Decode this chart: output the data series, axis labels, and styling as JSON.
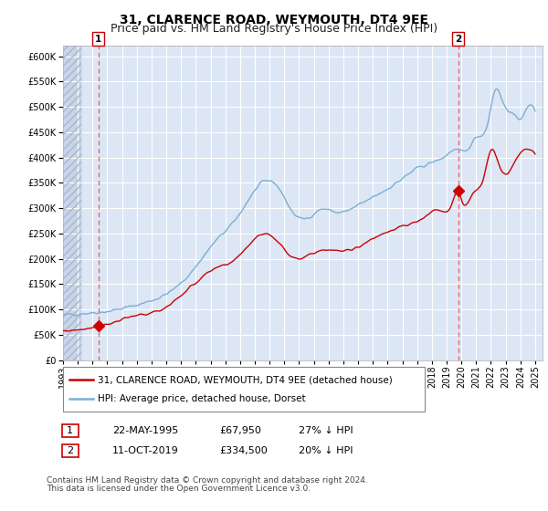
{
  "title": "31, CLARENCE ROAD, WEYMOUTH, DT4 9EE",
  "subtitle": "Price paid vs. HM Land Registry's House Price Index (HPI)",
  "ylim": [
    0,
    620000
  ],
  "yticks": [
    0,
    50000,
    100000,
    150000,
    200000,
    250000,
    300000,
    350000,
    400000,
    450000,
    500000,
    550000,
    600000
  ],
  "xlim_start": 1993.0,
  "xlim_end": 2025.5,
  "background_color": "#dce6f5",
  "hatch_color": "#c8d4e8",
  "grid_color": "#ffffff",
  "red_line_color": "#cc0000",
  "blue_line_color": "#7aafd4",
  "dashed_line_color": "#ff5555",
  "marker_color": "#cc0000",
  "sale1_date": 1995.386,
  "sale1_value": 67950,
  "sale2_date": 2019.78,
  "sale2_value": 334500,
  "legend_line1": "31, CLARENCE ROAD, WEYMOUTH, DT4 9EE (detached house)",
  "legend_line2": "HPI: Average price, detached house, Dorset",
  "table_row1": [
    "1",
    "22-MAY-1995",
    "£67,950",
    "27% ↓ HPI"
  ],
  "table_row2": [
    "2",
    "11-OCT-2019",
    "£334,500",
    "20% ↓ HPI"
  ],
  "footnote1": "Contains HM Land Registry data © Crown copyright and database right 2024.",
  "footnote2": "This data is licensed under the Open Government Licence v3.0.",
  "title_fontsize": 10,
  "subtitle_fontsize": 9,
  "tick_fontsize": 7,
  "legend_fontsize": 7.5,
  "table_fontsize": 8,
  "footnote_fontsize": 6.5
}
